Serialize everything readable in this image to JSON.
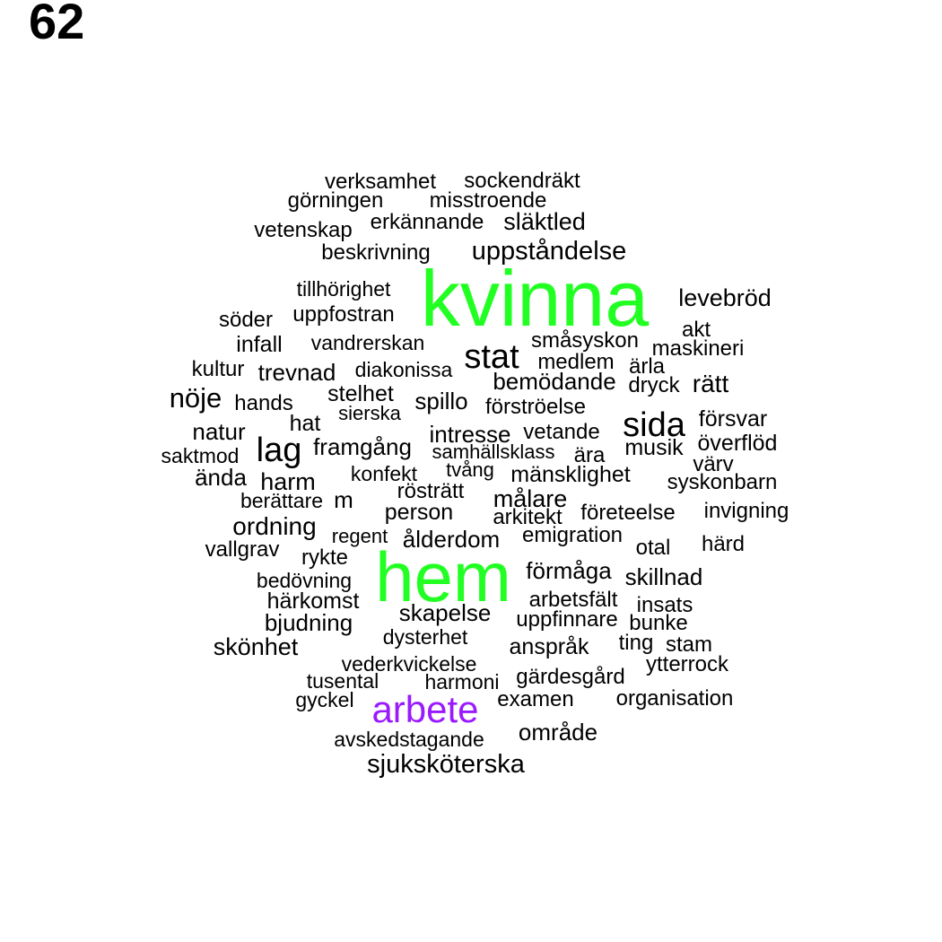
{
  "page_number": "62",
  "colors": {
    "default": "#000000",
    "green": "#22ff22",
    "purple": "#9a1aff"
  },
  "words": [
    {
      "text": "verksamhet"
    },
    {
      "text": "sockendräkt"
    },
    {
      "text": "görningen"
    },
    {
      "text": "misstroende"
    },
    {
      "text": "vetenskap"
    },
    {
      "text": "erkännande"
    },
    {
      "text": "släktled"
    },
    {
      "text": "beskrivning"
    },
    {
      "text": "uppståndelse"
    },
    {
      "text": "tillhörighet"
    },
    {
      "text": "kvinna",
      "color": "green"
    },
    {
      "text": "levebröd"
    },
    {
      "text": "söder"
    },
    {
      "text": "uppfostran"
    },
    {
      "text": "akt"
    },
    {
      "text": "infall"
    },
    {
      "text": "vandrerskan"
    },
    {
      "text": "småsyskon"
    },
    {
      "text": "maskineri"
    },
    {
      "text": "kultur"
    },
    {
      "text": "trevnad"
    },
    {
      "text": "diakonissa"
    },
    {
      "text": "stat"
    },
    {
      "text": "medlem"
    },
    {
      "text": "ärla"
    },
    {
      "text": "bemödande"
    },
    {
      "text": "dryck"
    },
    {
      "text": "rätt"
    },
    {
      "text": "nöje"
    },
    {
      "text": "stelhet"
    },
    {
      "text": "hands"
    },
    {
      "text": "spillo"
    },
    {
      "text": "sierska"
    },
    {
      "text": "förströelse"
    },
    {
      "text": "hat"
    },
    {
      "text": "sida"
    },
    {
      "text": "försvar"
    },
    {
      "text": "natur"
    },
    {
      "text": "intresse"
    },
    {
      "text": "vetande"
    },
    {
      "text": "lag"
    },
    {
      "text": "framgång"
    },
    {
      "text": "samhällsklass"
    },
    {
      "text": "ära"
    },
    {
      "text": "musik"
    },
    {
      "text": "överflöd"
    },
    {
      "text": "saktmod"
    },
    {
      "text": "värv"
    },
    {
      "text": "tvång"
    },
    {
      "text": "ända"
    },
    {
      "text": "konfekt"
    },
    {
      "text": "mänsklighet"
    },
    {
      "text": "harm"
    },
    {
      "text": "syskonbarn"
    },
    {
      "text": "rösträtt"
    },
    {
      "text": "berättare"
    },
    {
      "text": "m"
    },
    {
      "text": "målare"
    },
    {
      "text": "person"
    },
    {
      "text": "invigning"
    },
    {
      "text": "arkitekt"
    },
    {
      "text": "företeelse"
    },
    {
      "text": "ordning"
    },
    {
      "text": "emigration"
    },
    {
      "text": "regent"
    },
    {
      "text": "ålderdom"
    },
    {
      "text": "vallgrav"
    },
    {
      "text": "härd"
    },
    {
      "text": "otal"
    },
    {
      "text": "rykte"
    },
    {
      "text": "hem",
      "color": "green"
    },
    {
      "text": "förmåga"
    },
    {
      "text": "bedövning"
    },
    {
      "text": "skillnad"
    },
    {
      "text": "härkomst"
    },
    {
      "text": "arbetsfält"
    },
    {
      "text": "insats"
    },
    {
      "text": "skapelse"
    },
    {
      "text": "bjudning"
    },
    {
      "text": "uppfinnare"
    },
    {
      "text": "bunke"
    },
    {
      "text": "dysterhet"
    },
    {
      "text": "skönhet"
    },
    {
      "text": "anspråk"
    },
    {
      "text": "ting"
    },
    {
      "text": "stam"
    },
    {
      "text": "vederkvickelse"
    },
    {
      "text": "ytterrock"
    },
    {
      "text": "tusental"
    },
    {
      "text": "harmoni"
    },
    {
      "text": "gärdesgård"
    },
    {
      "text": "gyckel"
    },
    {
      "text": "arbete",
      "color": "purple"
    },
    {
      "text": "examen"
    },
    {
      "text": "organisation"
    },
    {
      "text": "område"
    },
    {
      "text": "avskedstagande"
    },
    {
      "text": "sjuksköterska"
    }
  ]
}
